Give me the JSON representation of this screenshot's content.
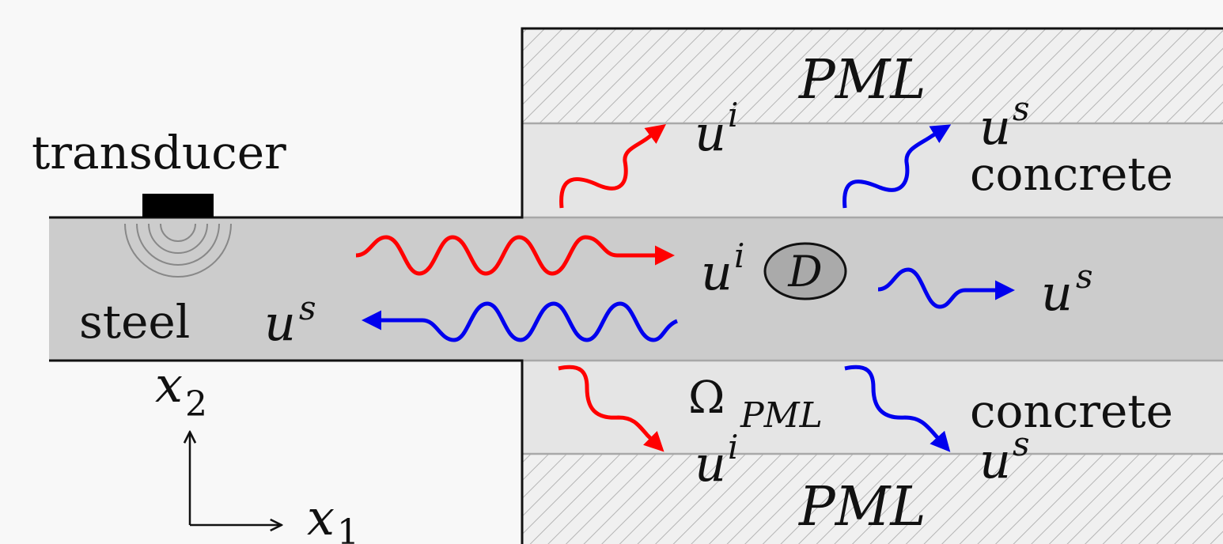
{
  "labels": {
    "transducer": "transducer",
    "steel": "steel",
    "concrete_top": "concrete",
    "concrete_bottom": "concrete",
    "pml_top": "PML",
    "pml_bottom": "PML",
    "omega_pml_base": "Ω",
    "omega_pml_sub": "PML",
    "defect": "D",
    "axis_x1_base": "x",
    "axis_x1_sub": "1",
    "axis_x2_base": "x",
    "axis_x2_sub": "2",
    "u_base": "u",
    "incident_sup": "i",
    "scattered_sup": "s"
  },
  "colors": {
    "incident": "#ff0000",
    "scattered": "#0000ee",
    "steel_fill": "#cccccc",
    "concrete_fill": "#e5e5e5",
    "pml_fill": "#f0f0f0",
    "hatch": "#b5b5b5",
    "outline": "#111111"
  }
}
